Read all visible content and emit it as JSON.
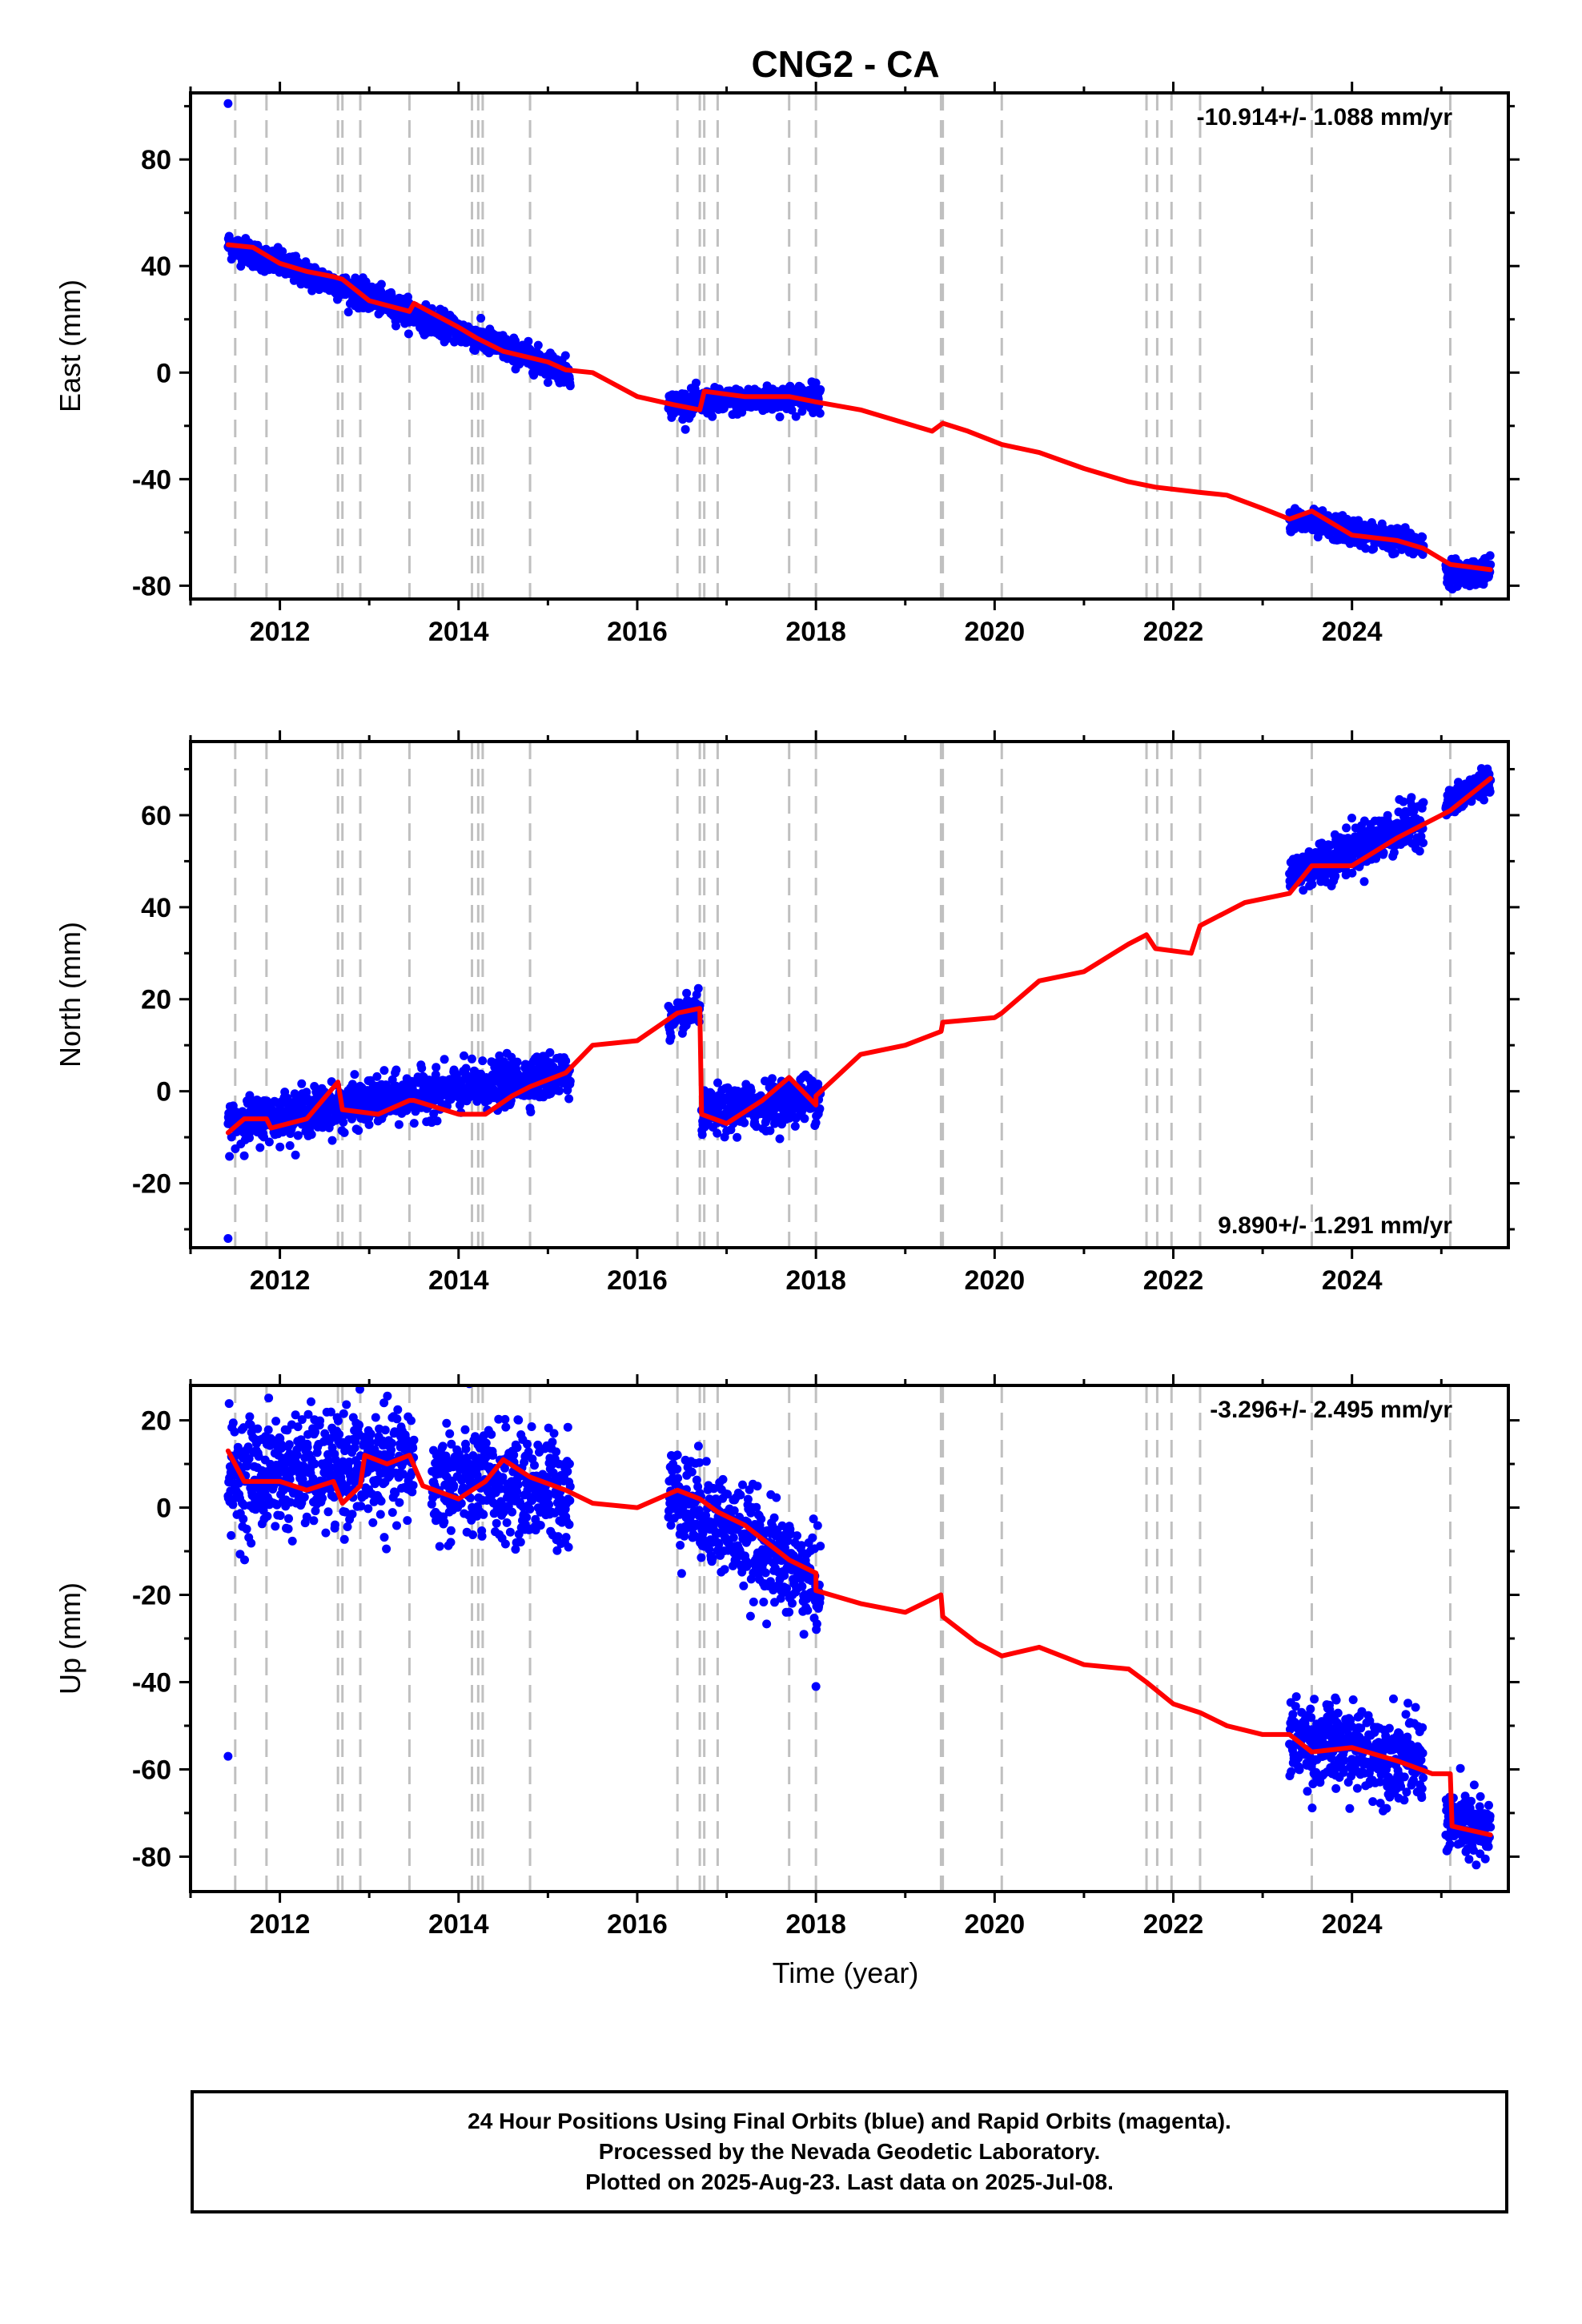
{
  "title": "CNG2 - CA",
  "x_axis_label": "Time (year)",
  "footer": {
    "line1": "24 Hour Positions Using Final Orbits (blue) and Rapid Orbits (magenta).",
    "line2": "Processed by the Nevada Geodetic Laboratory.",
    "line3": "Plotted on 2025-Aug-23. Last data on 2025-Jul-08."
  },
  "colors": {
    "data_points": "#0000ff",
    "model_fit": "#ff0000",
    "steps": "#c0c0c0",
    "frame": "#000000"
  },
  "chart_data": [
    {
      "type": "scatter",
      "panel": "east",
      "ylabel": "East (mm)",
      "rate_label": "-10.914+/- 1.088 mm/yr",
      "rate_position": "top-right",
      "xlim": [
        2011.0,
        2025.75
      ],
      "ylim": [
        -85,
        105
      ],
      "xticks": [
        2012,
        2014,
        2016,
        2018,
        2020,
        2022,
        2024
      ],
      "yticks": [
        -80,
        -40,
        0,
        40,
        80
      ],
      "step_lines": [
        2011.5,
        2011.85,
        2012.65,
        2012.7,
        2012.9,
        2013.45,
        2014.15,
        2014.22,
        2014.27,
        2014.8,
        2016.45,
        2016.7,
        2016.75,
        2016.9,
        2017.7,
        2018.0,
        2019.4,
        2019.42,
        2020.08,
        2021.7,
        2021.82,
        2021.98,
        2022.3,
        2023.55,
        2025.1
      ],
      "data_segments": [
        {
          "from": 2011.42,
          "to": 2015.25,
          "start": 48,
          "end": 0,
          "noise": 3
        },
        {
          "from": 2016.35,
          "to": 2018.05,
          "start": -12,
          "end": -9,
          "noise": 3
        },
        {
          "from": 2023.3,
          "to": 2024.8,
          "start": -55,
          "end": -65,
          "noise": 3
        },
        {
          "from": 2025.05,
          "to": 2025.55,
          "start": -75,
          "end": -75,
          "noise": 3
        }
      ],
      "outliers": [
        {
          "x": 2011.42,
          "y": 101
        }
      ],
      "model": [
        [
          2011.42,
          48
        ],
        [
          2011.7,
          47
        ],
        [
          2012.0,
          41
        ],
        [
          2012.3,
          38
        ],
        [
          2012.6,
          36
        ],
        [
          2012.7,
          35
        ],
        [
          2013.0,
          27
        ],
        [
          2013.45,
          23
        ],
        [
          2013.5,
          26
        ],
        [
          2014.0,
          17
        ],
        [
          2014.2,
          13
        ],
        [
          2014.5,
          8
        ],
        [
          2015.0,
          4
        ],
        [
          2015.2,
          1
        ],
        [
          2015.5,
          0
        ],
        [
          2016.0,
          -9
        ],
        [
          2016.4,
          -12
        ],
        [
          2016.7,
          -14
        ],
        [
          2016.75,
          -7
        ],
        [
          2017.2,
          -9
        ],
        [
          2017.7,
          -9
        ],
        [
          2018.0,
          -11
        ],
        [
          2018.5,
          -14
        ],
        [
          2019.3,
          -22
        ],
        [
          2019.42,
          -19
        ],
        [
          2019.7,
          -22
        ],
        [
          2020.08,
          -27
        ],
        [
          2020.5,
          -30
        ],
        [
          2021.0,
          -36
        ],
        [
          2021.5,
          -41
        ],
        [
          2021.8,
          -43
        ],
        [
          2022.3,
          -45
        ],
        [
          2022.6,
          -46
        ],
        [
          2023.0,
          -51
        ],
        [
          2023.3,
          -55
        ],
        [
          2023.55,
          -52
        ],
        [
          2024.0,
          -61
        ],
        [
          2024.5,
          -63
        ],
        [
          2024.8,
          -66
        ],
        [
          2025.1,
          -72
        ],
        [
          2025.55,
          -74
        ]
      ]
    },
    {
      "type": "scatter",
      "panel": "north",
      "ylabel": "North (mm)",
      "rate_label": "9.890+/- 1.291 mm/yr",
      "rate_position": "bottom-right",
      "xlim": [
        2011.0,
        2025.75
      ],
      "ylim": [
        -34,
        76
      ],
      "xticks": [
        2012,
        2014,
        2016,
        2018,
        2020,
        2022,
        2024
      ],
      "yticks": [
        -20,
        0,
        20,
        40,
        60
      ],
      "step_lines": [
        2011.5,
        2011.85,
        2012.65,
        2012.7,
        2012.9,
        2013.45,
        2014.15,
        2014.22,
        2014.27,
        2014.8,
        2016.45,
        2016.7,
        2016.75,
        2016.9,
        2017.7,
        2018.0,
        2019.4,
        2019.42,
        2020.08,
        2021.7,
        2021.82,
        2021.98,
        2022.3,
        2023.55,
        2025.1
      ],
      "data_segments": [
        {
          "from": 2011.42,
          "to": 2015.25,
          "start": -7,
          "end": 4,
          "noise": 3
        },
        {
          "from": 2016.35,
          "to": 2016.7,
          "start": 15,
          "end": 18,
          "noise": 2
        },
        {
          "from": 2016.72,
          "to": 2018.05,
          "start": -5,
          "end": -1,
          "noise": 3
        },
        {
          "from": 2023.3,
          "to": 2024.8,
          "start": 47,
          "end": 59,
          "noise": 3
        },
        {
          "from": 2025.05,
          "to": 2025.55,
          "start": 62,
          "end": 68,
          "noise": 2
        }
      ],
      "outliers": [
        {
          "x": 2011.42,
          "y": -32
        }
      ],
      "model": [
        [
          2011.42,
          -9
        ],
        [
          2011.6,
          -6
        ],
        [
          2011.85,
          -6
        ],
        [
          2011.9,
          -8
        ],
        [
          2012.3,
          -6
        ],
        [
          2012.65,
          2
        ],
        [
          2012.7,
          -4
        ],
        [
          2013.1,
          -5
        ],
        [
          2013.45,
          -2
        ],
        [
          2013.5,
          -2
        ],
        [
          2014.0,
          -5
        ],
        [
          2014.3,
          -5
        ],
        [
          2014.6,
          -1
        ],
        [
          2014.8,
          1
        ],
        [
          2015.2,
          4
        ],
        [
          2015.5,
          10
        ],
        [
          2016.0,
          11
        ],
        [
          2016.45,
          17
        ],
        [
          2016.7,
          18
        ],
        [
          2016.72,
          -5
        ],
        [
          2017.0,
          -7
        ],
        [
          2017.4,
          -2
        ],
        [
          2017.7,
          3
        ],
        [
          2018.0,
          -3
        ],
        [
          2018.0,
          -1
        ],
        [
          2018.5,
          8
        ],
        [
          2019.0,
          10
        ],
        [
          2019.4,
          13
        ],
        [
          2019.42,
          15
        ],
        [
          2020.0,
          16
        ],
        [
          2020.08,
          17
        ],
        [
          2020.5,
          24
        ],
        [
          2021.0,
          26
        ],
        [
          2021.5,
          32
        ],
        [
          2021.7,
          34
        ],
        [
          2021.8,
          31
        ],
        [
          2022.2,
          30
        ],
        [
          2022.3,
          36
        ],
        [
          2022.8,
          41
        ],
        [
          2023.3,
          43
        ],
        [
          2023.55,
          49
        ],
        [
          2024.0,
          49
        ],
        [
          2024.5,
          55
        ],
        [
          2024.9,
          59
        ],
        [
          2025.1,
          61
        ],
        [
          2025.55,
          68
        ]
      ]
    },
    {
      "type": "scatter",
      "panel": "up",
      "ylabel": "Up (mm)",
      "rate_label": "-3.296+/- 2.495 mm/yr",
      "rate_position": "top-right",
      "xlim": [
        2011.0,
        2025.75
      ],
      "ylim": [
        -88,
        28
      ],
      "xticks": [
        2012,
        2014,
        2016,
        2018,
        2020,
        2022,
        2024
      ],
      "yticks": [
        -80,
        -60,
        -40,
        -20,
        0,
        20
      ],
      "step_lines": [
        2011.5,
        2011.85,
        2012.65,
        2012.7,
        2012.9,
        2013.45,
        2014.15,
        2014.22,
        2014.27,
        2014.8,
        2016.45,
        2016.7,
        2016.75,
        2016.9,
        2017.7,
        2018.0,
        2019.4,
        2019.42,
        2020.08,
        2021.7,
        2021.82,
        2021.98,
        2022.3,
        2023.55,
        2025.1
      ],
      "data_segments": [
        {
          "from": 2011.42,
          "to": 2013.5,
          "start": 7,
          "end": 10,
          "noise": 8
        },
        {
          "from": 2013.7,
          "to": 2015.25,
          "start": 6,
          "end": 4,
          "noise": 8
        },
        {
          "from": 2016.35,
          "to": 2018.05,
          "start": 4,
          "end": -18,
          "noise": 7
        },
        {
          "from": 2023.3,
          "to": 2024.8,
          "start": -53,
          "end": -58,
          "noise": 6
        },
        {
          "from": 2025.05,
          "to": 2025.55,
          "start": -72,
          "end": -75,
          "noise": 5
        }
      ],
      "outliers": [
        {
          "x": 2011.42,
          "y": -57
        },
        {
          "x": 2018.0,
          "y": -41
        }
      ],
      "model": [
        [
          2011.42,
          13
        ],
        [
          2011.6,
          6
        ],
        [
          2012.0,
          6
        ],
        [
          2012.3,
          4
        ],
        [
          2012.6,
          6
        ],
        [
          2012.7,
          1
        ],
        [
          2012.9,
          5
        ],
        [
          2012.95,
          12
        ],
        [
          2013.2,
          10
        ],
        [
          2013.45,
          12
        ],
        [
          2013.6,
          5
        ],
        [
          2014.0,
          2
        ],
        [
          2014.15,
          4
        ],
        [
          2014.3,
          6
        ],
        [
          2014.5,
          11
        ],
        [
          2014.8,
          7
        ],
        [
          2015.2,
          4
        ],
        [
          2015.5,
          1
        ],
        [
          2016.0,
          0
        ],
        [
          2016.45,
          4
        ],
        [
          2016.7,
          2
        ],
        [
          2016.9,
          -1
        ],
        [
          2017.2,
          -4
        ],
        [
          2017.7,
          -12
        ],
        [
          2018.0,
          -15
        ],
        [
          2018.0,
          -19
        ],
        [
          2018.5,
          -22
        ],
        [
          2019.0,
          -24
        ],
        [
          2019.4,
          -20
        ],
        [
          2019.42,
          -25
        ],
        [
          2019.8,
          -31
        ],
        [
          2020.08,
          -34
        ],
        [
          2020.5,
          -32
        ],
        [
          2021.0,
          -36
        ],
        [
          2021.5,
          -37
        ],
        [
          2021.7,
          -40
        ],
        [
          2022.0,
          -45
        ],
        [
          2022.3,
          -47
        ],
        [
          2022.6,
          -50
        ],
        [
          2023.0,
          -52
        ],
        [
          2023.3,
          -52
        ],
        [
          2023.55,
          -56
        ],
        [
          2024.0,
          -55
        ],
        [
          2024.5,
          -58
        ],
        [
          2024.9,
          -61
        ],
        [
          2025.1,
          -61
        ],
        [
          2025.12,
          -73
        ],
        [
          2025.55,
          -75
        ]
      ]
    }
  ]
}
